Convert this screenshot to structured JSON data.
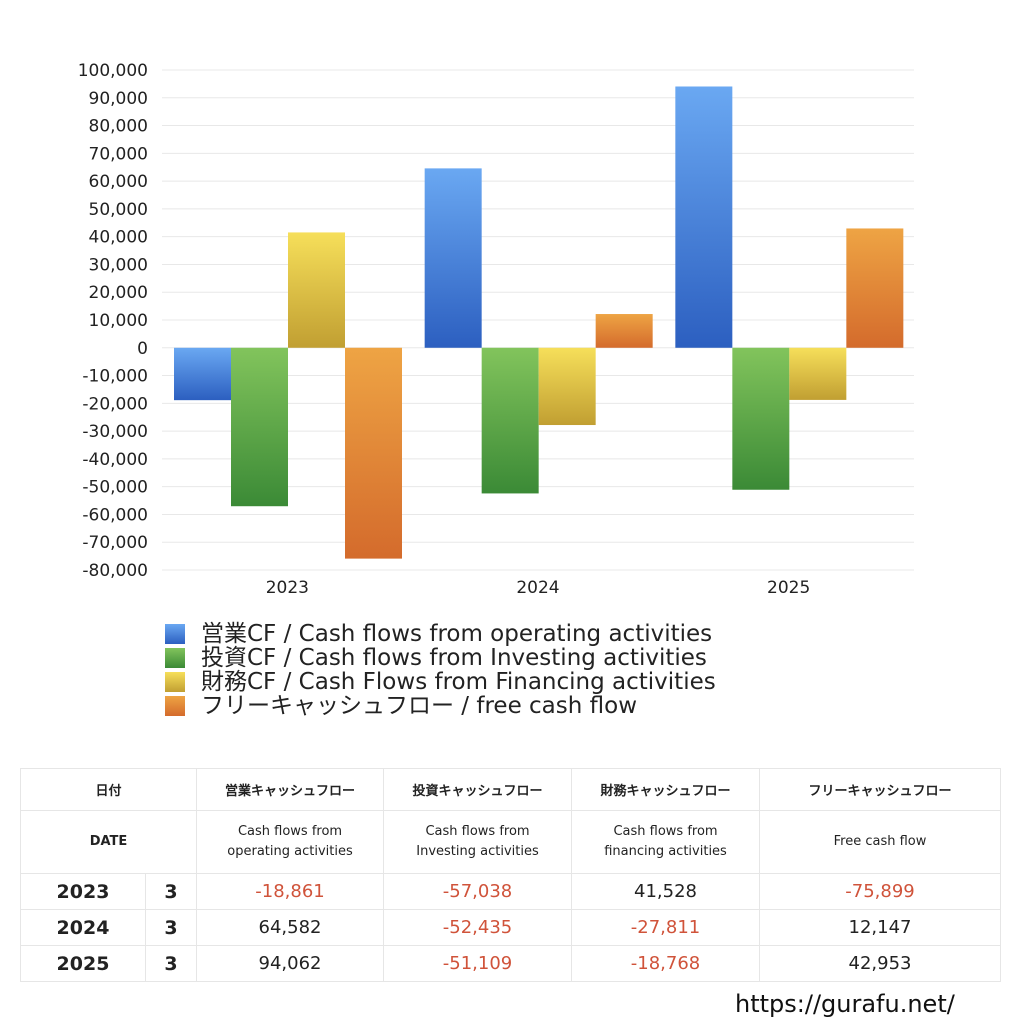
{
  "chart_data": {
    "type": "bar",
    "categories": [
      "2023",
      "2024",
      "2025"
    ],
    "series": [
      {
        "name": "営業CF / Cash flows from operating activities",
        "values": [
          -18861,
          64582,
          94062
        ],
        "color_top": "#6aa8f2",
        "color_bottom": "#2c5fc0"
      },
      {
        "name": "投資CF / Cash flows from Investing activities",
        "values": [
          -57038,
          -52435,
          -51109
        ],
        "color_top": "#82c45c",
        "color_bottom": "#3b8a36"
      },
      {
        "name": "財務CF / Cash Flows from Financing activities",
        "values": [
          41528,
          -27811,
          -18768
        ],
        "color_top": "#f6df5a",
        "color_bottom": "#c19f32"
      },
      {
        "name": "フリーキャッシュフロー / free cash flow",
        "values": [
          -75899,
          12147,
          42953
        ],
        "color_top": "#eea444",
        "color_bottom": "#d46b2c"
      }
    ],
    "ylim": [
      -80000,
      100000
    ],
    "yticks": [
      "100,000",
      "90,000",
      "80,000",
      "70,000",
      "60,000",
      "50,000",
      "40,000",
      "30,000",
      "20,000",
      "10,000",
      "0",
      "-10,000",
      "-20,000",
      "-30,000",
      "-40,000",
      "-50,000",
      "-60,000",
      "-70,000",
      "-80,000"
    ],
    "grid": true,
    "legend_position": "bottom"
  },
  "table": {
    "header_jp": {
      "date": "日付",
      "operating": "営業キャッシュフロー",
      "investing": "投資キャッシュフロー",
      "financing": "財務キャッシュフロー",
      "free": "フリーキャッシュフロー"
    },
    "header_en": {
      "date": "DATE",
      "operating_1": "Cash flows from",
      "operating_2": "operating activities",
      "investing_1": "Cash flows from",
      "investing_2": "Investing activities",
      "financing_1": "Cash flows from",
      "financing_2": "financing activities",
      "free": "Free cash flow"
    },
    "rows": [
      {
        "year": "2023",
        "month": "3",
        "operating": "-18,861",
        "investing": "-57,038",
        "financing": "41,528",
        "free": "-75,899"
      },
      {
        "year": "2024",
        "month": "3",
        "operating": "64,582",
        "investing": "-52,435",
        "financing": "-27,811",
        "free": "12,147"
      },
      {
        "year": "2025",
        "month": "3",
        "operating": "94,062",
        "investing": "-51,109",
        "financing": "-18,768",
        "free": "42,953"
      }
    ]
  },
  "footer": {
    "url": "https://gurafu.net/"
  }
}
